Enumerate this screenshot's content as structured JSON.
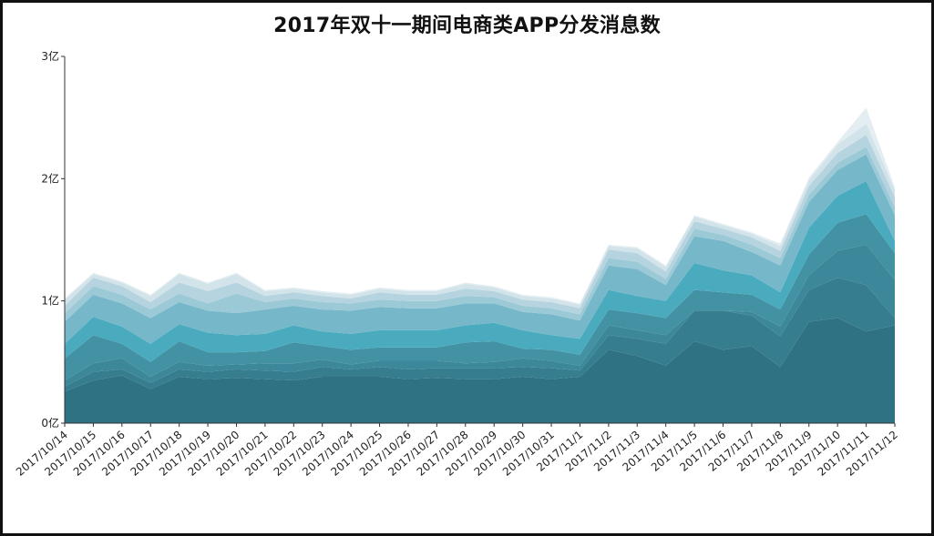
{
  "title": "2017年双十一期间电商类APP分发消息数",
  "chart_data": {
    "type": "area",
    "stacked": true,
    "title": "2017年双十一期间电商类APP分发消息数",
    "xlabel": "",
    "ylabel": "",
    "ylim": [
      0,
      3
    ],
    "yticks": [
      "0亿",
      "1亿",
      "2亿",
      "3亿"
    ],
    "grid": false,
    "categories": [
      "2017/10/14",
      "2017/10/15",
      "2017/10/16",
      "2017/10/17",
      "2017/10/18",
      "2017/10/19",
      "2017/10/20",
      "2017/10/21",
      "2017/10/22",
      "2017/10/23",
      "2017/10/24",
      "2017/10/25",
      "2017/10/26",
      "2017/10/27",
      "2017/10/28",
      "2017/10/29",
      "2017/10/30",
      "2017/10/31",
      "2017/11/1",
      "2017/11/2",
      "2017/11/3",
      "2017/11/4",
      "2017/11/5",
      "2017/11/6",
      "2017/11/7",
      "2017/11/8",
      "2017/11/9",
      "2017/11/10",
      "2017/11/11",
      "2017/11/12"
    ],
    "series": [
      {
        "color": "#2e7283",
        "values": [
          0.26,
          0.35,
          0.39,
          0.28,
          0.38,
          0.36,
          0.37,
          0.36,
          0.35,
          0.38,
          0.38,
          0.38,
          0.36,
          0.37,
          0.36,
          0.36,
          0.38,
          0.36,
          0.38,
          0.6,
          0.55,
          0.47,
          0.67,
          0.6,
          0.63,
          0.46,
          0.83,
          0.86,
          0.75,
          0.8
        ]
      },
      {
        "color": "#367d8f",
        "values": [
          0.04,
          0.07,
          0.05,
          0.05,
          0.06,
          0.06,
          0.07,
          0.07,
          0.07,
          0.08,
          0.06,
          0.08,
          0.08,
          0.08,
          0.09,
          0.09,
          0.08,
          0.09,
          0.05,
          0.12,
          0.14,
          0.18,
          0.25,
          0.32,
          0.25,
          0.25,
          0.26,
          0.33,
          0.38,
          0.06
        ]
      },
      {
        "color": "#3c8799",
        "values": [
          0.05,
          0.07,
          0.09,
          0.05,
          0.06,
          0.05,
          0.04,
          0.06,
          0.07,
          0.06,
          0.04,
          0.05,
          0.07,
          0.06,
          0.04,
          0.05,
          0.07,
          0.06,
          0.04,
          0.08,
          0.07,
          0.07,
          0.0,
          0.0,
          0.03,
          0.08,
          0.12,
          0.22,
          0.33,
          0.31
        ]
      },
      {
        "color": "#4292a3",
        "values": [
          0.18,
          0.23,
          0.12,
          0.12,
          0.17,
          0.11,
          0.1,
          0.1,
          0.17,
          0.11,
          0.12,
          0.11,
          0.11,
          0.11,
          0.17,
          0.17,
          0.08,
          0.09,
          0.09,
          0.13,
          0.14,
          0.14,
          0.17,
          0.15,
          0.14,
          0.14,
          0.17,
          0.23,
          0.25,
          0.22
        ]
      },
      {
        "color": "#4aabbf",
        "values": [
          0.12,
          0.15,
          0.14,
          0.15,
          0.14,
          0.16,
          0.14,
          0.14,
          0.14,
          0.12,
          0.13,
          0.14,
          0.14,
          0.14,
          0.14,
          0.15,
          0.15,
          0.12,
          0.13,
          0.16,
          0.14,
          0.14,
          0.22,
          0.18,
          0.16,
          0.14,
          0.22,
          0.22,
          0.27,
          0.1
        ]
      },
      {
        "color": "#76b8ca",
        "values": [
          0.18,
          0.18,
          0.19,
          0.21,
          0.18,
          0.18,
          0.18,
          0.2,
          0.16,
          0.18,
          0.19,
          0.19,
          0.18,
          0.18,
          0.18,
          0.16,
          0.15,
          0.17,
          0.15,
          0.2,
          0.22,
          0.13,
          0.22,
          0.24,
          0.19,
          0.22,
          0.21,
          0.21,
          0.22,
          0.21
        ]
      },
      {
        "color": "#9bc9d6",
        "values": [
          0.07,
          0.07,
          0.07,
          0.07,
          0.07,
          0.06,
          0.16,
          0.06,
          0.06,
          0.06,
          0.06,
          0.06,
          0.06,
          0.06,
          0.06,
          0.05,
          0.05,
          0.05,
          0.05,
          0.06,
          0.06,
          0.05,
          0.06,
          0.05,
          0.06,
          0.06,
          0.06,
          0.06,
          0.06,
          0.07
        ]
      },
      {
        "color": "#b5d4df",
        "values": [
          0.06,
          0.07,
          0.07,
          0.06,
          0.09,
          0.1,
          0.09,
          0.05,
          0.05,
          0.05,
          0.04,
          0.06,
          0.05,
          0.05,
          0.06,
          0.05,
          0.05,
          0.05,
          0.05,
          0.07,
          0.07,
          0.06,
          0.06,
          0.05,
          0.06,
          0.06,
          0.07,
          0.08,
          0.1,
          0.08
        ]
      },
      {
        "color": "#d2e3ea",
        "values": [
          0.05,
          0.03,
          0.03,
          0.05,
          0.07,
          0.06,
          0.07,
          0.04,
          0.03,
          0.03,
          0.03,
          0.03,
          0.03,
          0.03,
          0.04,
          0.03,
          0.03,
          0.03,
          0.03,
          0.03,
          0.04,
          0.04,
          0.04,
          0.03,
          0.03,
          0.04,
          0.05,
          0.07,
          0.09,
          0.06
        ]
      },
      {
        "color": "#e3edf2",
        "values": [
          0.01,
          0.01,
          0.01,
          0.01,
          0.01,
          0.01,
          0.01,
          0.01,
          0.01,
          0.01,
          0.01,
          0.01,
          0.01,
          0.01,
          0.01,
          0.01,
          0.01,
          0.01,
          0.01,
          0.01,
          0.01,
          0.01,
          0.01,
          0.01,
          0.01,
          0.02,
          0.02,
          0.02,
          0.13,
          0.02
        ]
      }
    ]
  }
}
